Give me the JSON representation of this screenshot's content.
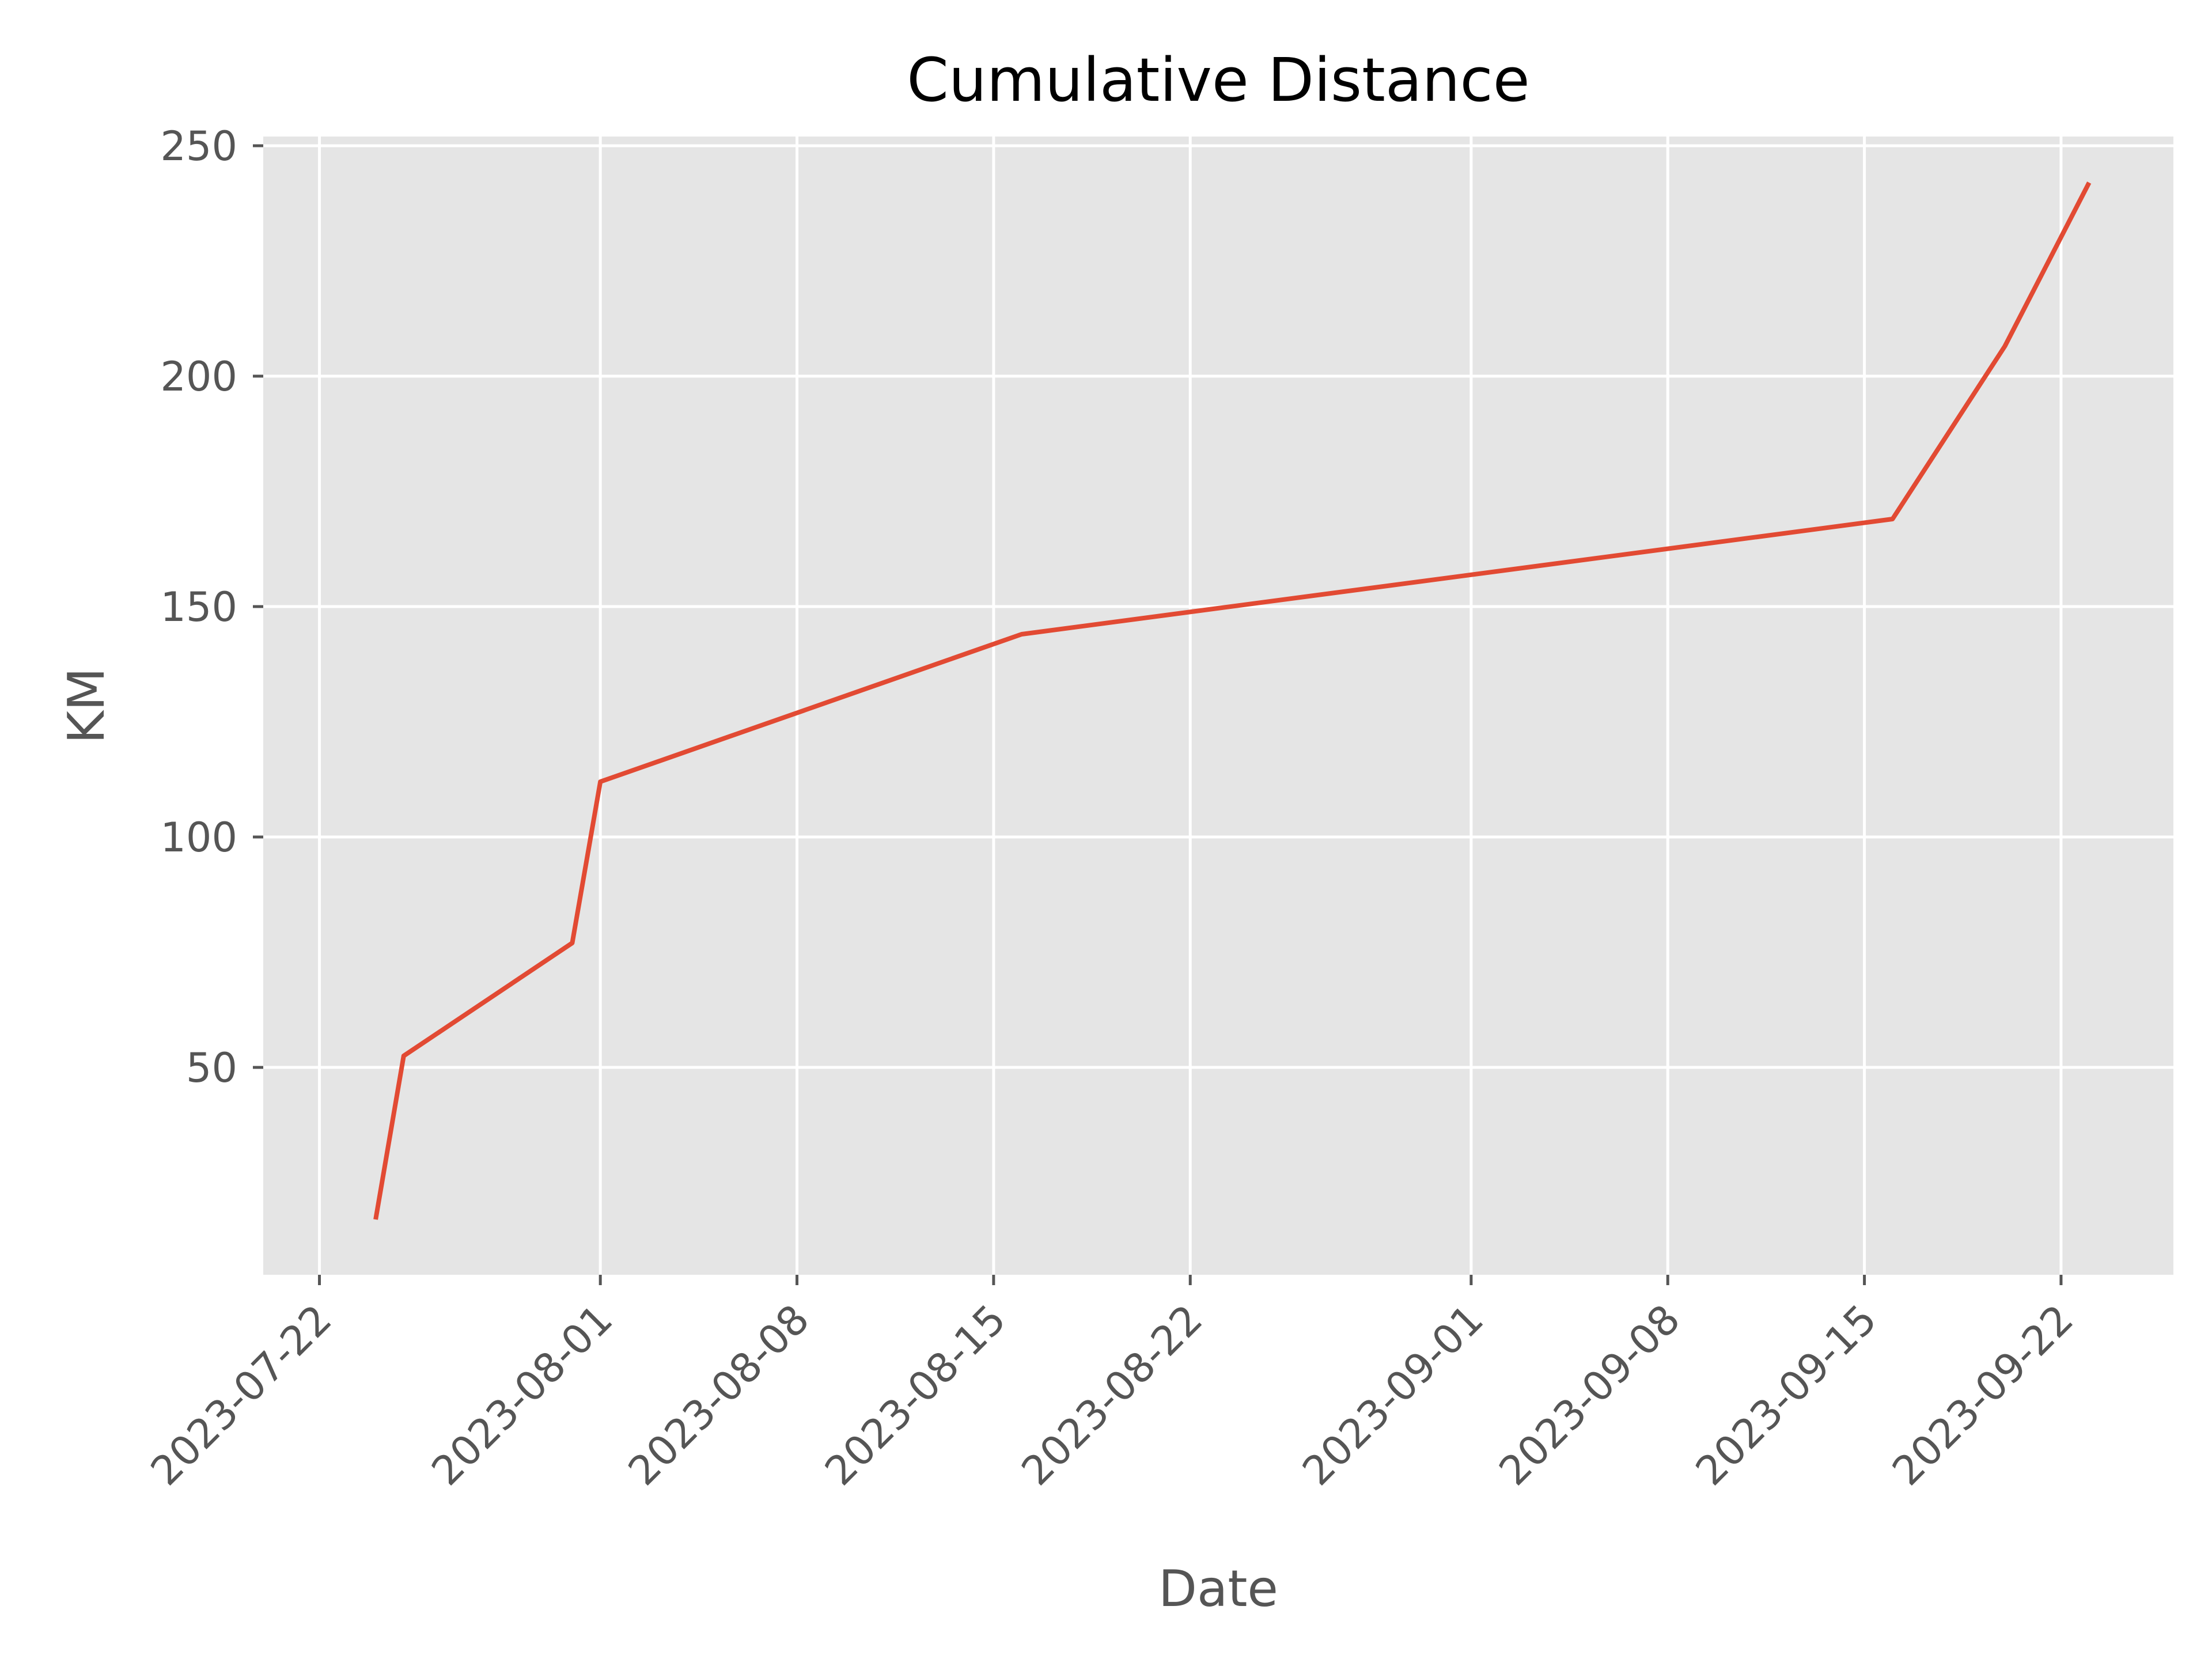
{
  "chart_data": {
    "type": "line",
    "title": "Cumulative Distance",
    "xlabel": "Date",
    "ylabel": "KM",
    "xlim": [
      "2023-07-20",
      "2023-09-26"
    ],
    "ylim": [
      5,
      252
    ],
    "grid": true,
    "x_ticks": [
      "2023-07-22",
      "2023-08-01",
      "2023-08-08",
      "2023-08-15",
      "2023-08-22",
      "2023-09-01",
      "2023-09-08",
      "2023-09-15",
      "2023-09-22"
    ],
    "y_ticks": [
      50,
      100,
      150,
      200,
      250
    ],
    "colors": {
      "line": "#e24a33",
      "plot_background": "#e5e5e5",
      "grid": "#ffffff",
      "tick_color": "#555555",
      "title_color": "#000000"
    },
    "series": [
      {
        "x": [
          "2023-07-24",
          "2023-07-25",
          "2023-07-31",
          "2023-08-01",
          "2023-08-16",
          "2023-09-16",
          "2023-09-20",
          "2023-09-23"
        ],
        "y": [
          17,
          52.5,
          77,
          112,
          144,
          169,
          206.5,
          242
        ]
      }
    ]
  }
}
